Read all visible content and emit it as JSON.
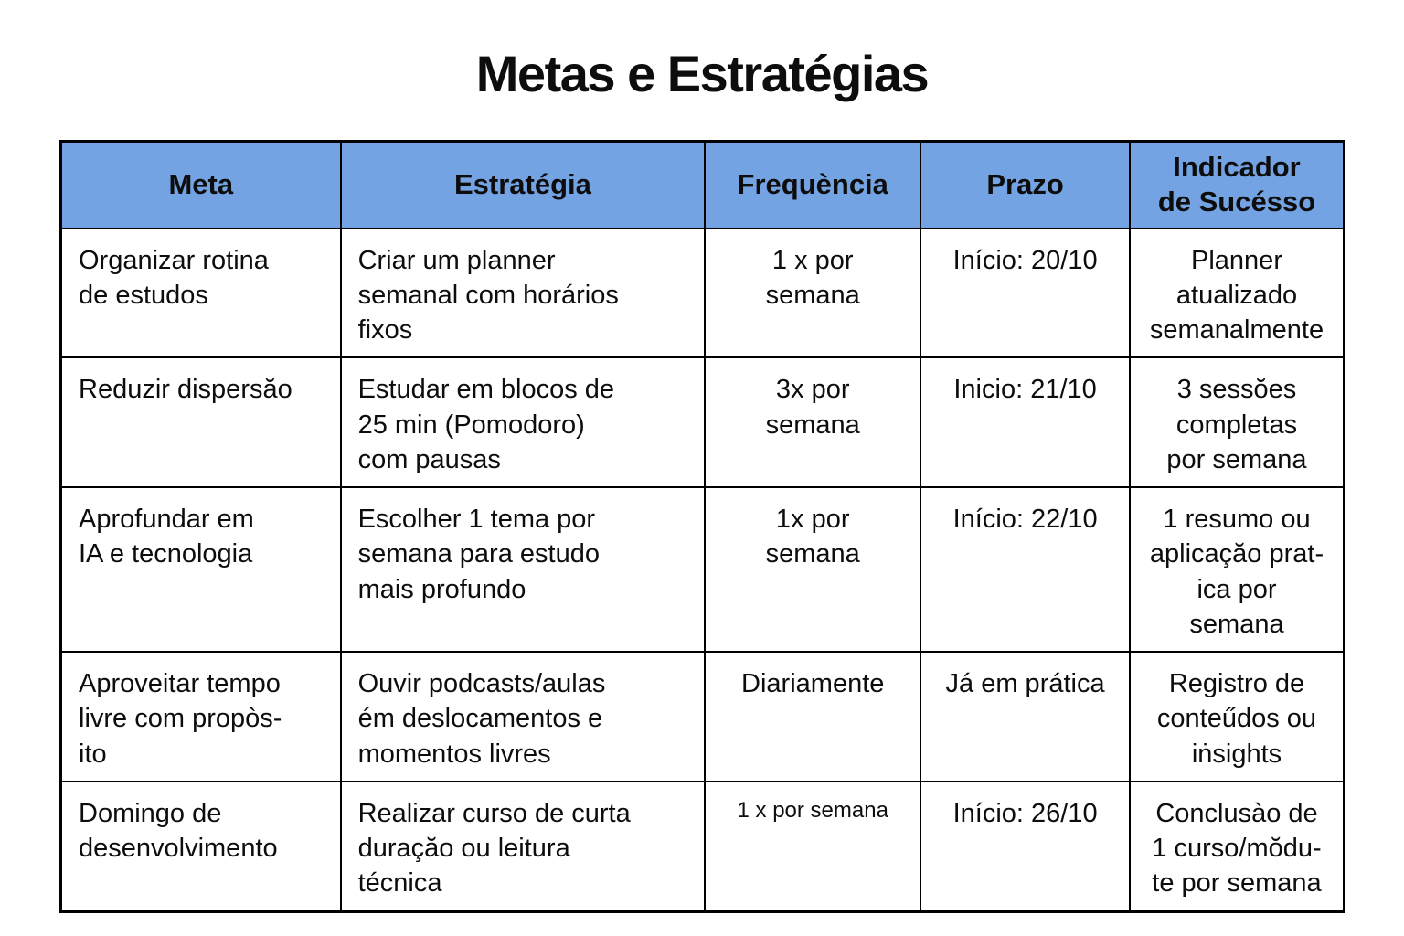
{
  "page": {
    "title": "Metas e Estratégias"
  },
  "colors": {
    "header_bg": "#74a3e3",
    "border": "#000000",
    "background": "#ffffff",
    "text": "#0d0d0d"
  },
  "table": {
    "headers": {
      "meta": "Meta",
      "estrategia": "Estratégia",
      "frequencia": "Frequència",
      "prazo": "Prazo",
      "indicador": "Indicador\nde Sucésso"
    },
    "rows": [
      {
        "meta": "Organizar rotina\nde estudos",
        "estrategia": "Criar um planner\nsemanal com horários\nfixos",
        "frequencia": "1 x por\nsemana",
        "prazo": "Início: 20/10",
        "indicador": "Planner\natualizado\nsemanalmente"
      },
      {
        "meta": "Reduzir dispersăo",
        "estrategia": "Estudar em blocos de\n25 min (Pomodoro)\ncom pausas",
        "frequencia": "3x por\nsemana",
        "prazo": "Inicio: 21/10",
        "indicador": "3 sessŏes\ncompletas\npor semana"
      },
      {
        "meta": "Aprofundar em\nIA e tecnologia",
        "estrategia": "Escolher 1 tema por\nsemana para estudo\nmais profundo",
        "frequencia": "1x por\nsemana",
        "prazo": "Início: 22/10",
        "indicador": "1 resumo ou\naplicaçăo prat-\nica por semana"
      },
      {
        "meta": "Aproveitar tempo\nlivre com propòs-\nito",
        "estrategia": "Ouvir podcasts/aulas\ném deslocamentos e\nmomentos livres",
        "frequencia": "Diariamente",
        "prazo": "Já em prática",
        "indicador": "Registro de\nconteűdos ou\niṅsights"
      },
      {
        "meta": "Domingo de\ndesenvolvimento",
        "estrategia": "Realizar curso de curta\nduraçăo ou leitura\ntécnica",
        "frequencia": "1 x por semana",
        "prazo": "Início: 26/10",
        "indicador": "Conclusào de\n1 curso/mŏdu-\nte por semana"
      }
    ]
  }
}
